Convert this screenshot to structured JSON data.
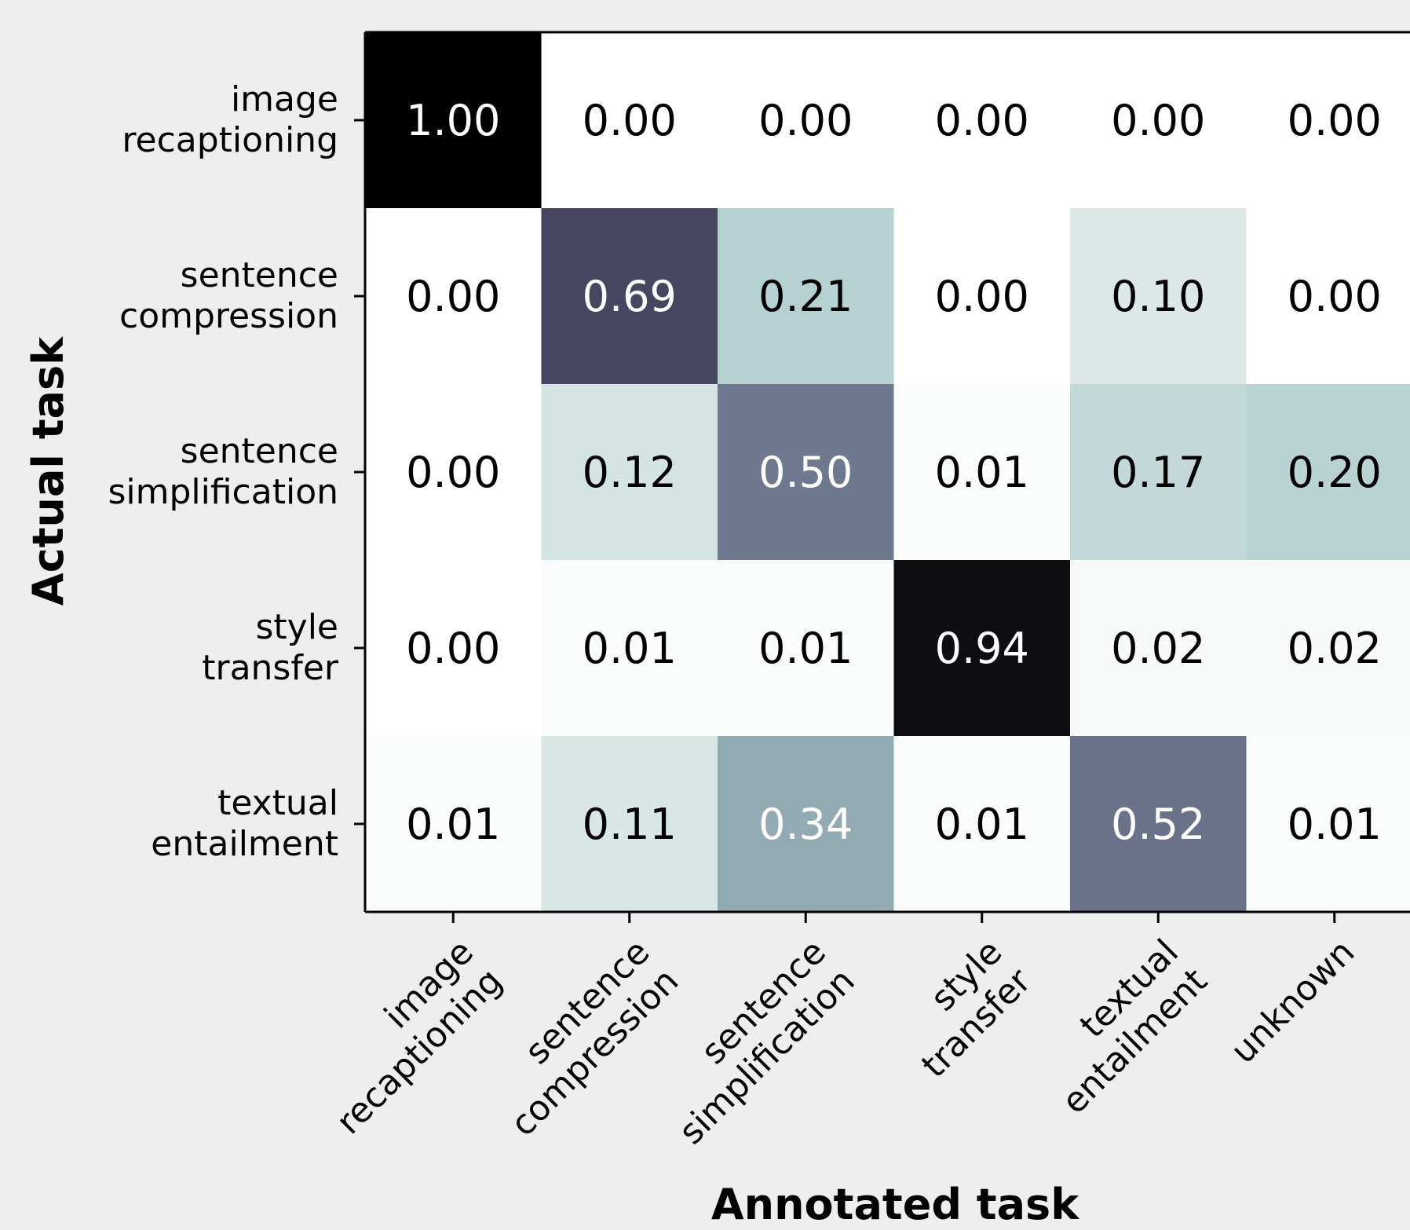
{
  "chart_data": {
    "type": "heatmap",
    "title": "",
    "xlabel": "Annotated task",
    "ylabel": "Actual task",
    "x_categories": [
      [
        "image",
        "recaptioning"
      ],
      [
        "sentence",
        "compression"
      ],
      [
        "sentence",
        "simplification"
      ],
      [
        "style",
        "transfer"
      ],
      [
        "textual",
        "entailment"
      ],
      [
        "unknown"
      ]
    ],
    "y_categories": [
      [
        "image",
        "recaptioning"
      ],
      [
        "sentence",
        "compression"
      ],
      [
        "sentence",
        "simplification"
      ],
      [
        "style",
        "transfer"
      ],
      [
        "textual",
        "entailment"
      ]
    ],
    "values": [
      [
        1.0,
        0.0,
        0.0,
        0.0,
        0.0,
        0.0
      ],
      [
        0.0,
        0.69,
        0.21,
        0.0,
        0.1,
        0.0
      ],
      [
        0.0,
        0.12,
        0.5,
        0.01,
        0.17,
        0.2
      ],
      [
        0.0,
        0.01,
        0.01,
        0.94,
        0.02,
        0.02
      ],
      [
        0.01,
        0.11,
        0.34,
        0.01,
        0.52,
        0.01
      ]
    ],
    "value_format_decimals": 2,
    "value_range": [
      0,
      1
    ],
    "colormap": "bone_r",
    "grid": false,
    "legend": "none"
  },
  "colors": {
    "background": "#eeeeee",
    "axis": "#000000",
    "text_dark": "#000000",
    "text_light": "#ffffff"
  }
}
